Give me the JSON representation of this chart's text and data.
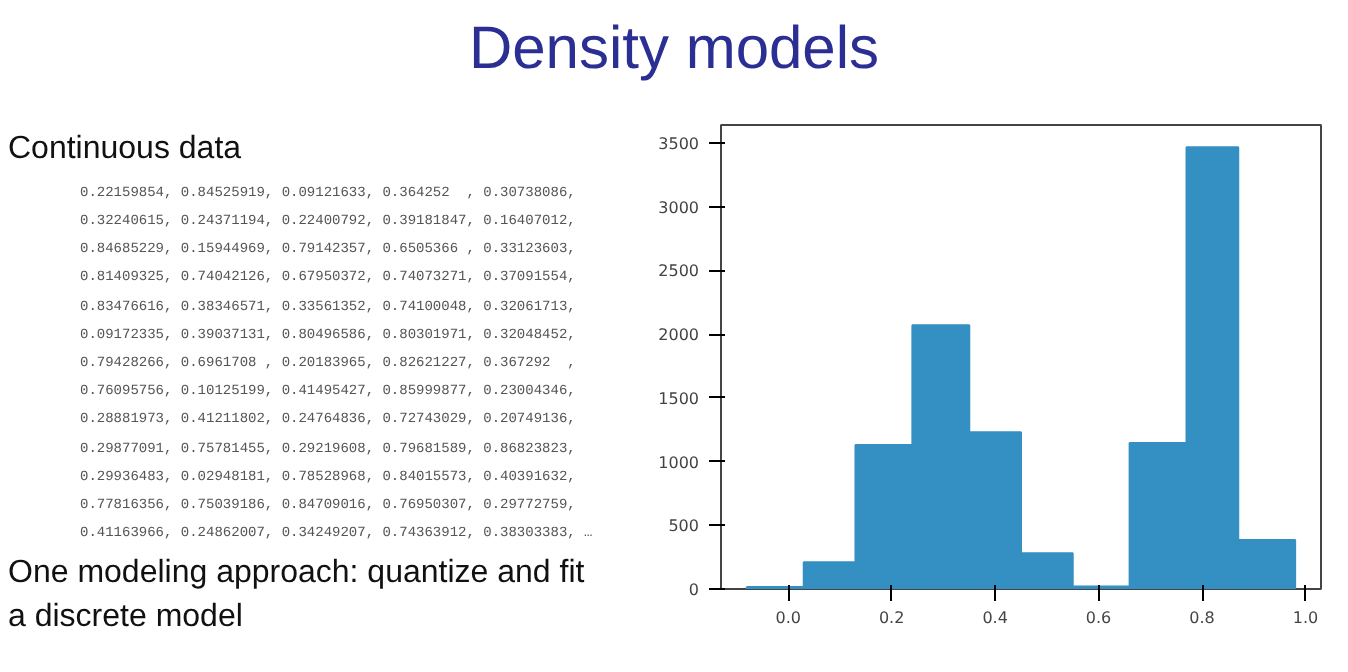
{
  "chart_data": {
    "type": "histogram",
    "title": "Density models",
    "annotations": [
      "Continuous data",
      "0.22159854, 0.84525919, 0.09121633, 0.364252  , 0.30738086,",
      "0.32240615, 0.24371194, 0.22400792, 0.39181847, 0.16407012,",
      "0.84685229, 0.15944969, 0.79142357, 0.6505366 , 0.33123603,",
      "0.81409325, 0.74042126, 0.67950372, 0.74073271, 0.37091554,",
      "0.83476616, 0.38346571, 0.33561352, 0.74100048, 0.32061713,",
      "0.09172335, 0.39037131, 0.80496586, 0.80301971, 0.32048452,",
      "0.79428266, 0.6961708 , 0.20183965, 0.82621227, 0.367292  ,",
      "0.76095756, 0.10125199, 0.41495427, 0.85999877, 0.23004346,",
      "0.28881973, 0.41211802, 0.24764836, 0.72743029, 0.20749136,",
      "0.29877091, 0.75781455, 0.29219608, 0.79681589, 0.86823823,",
      "0.29936483, 0.02948181, 0.78528968, 0.84015573, 0.40391632,",
      "0.77816356, 0.75039186, 0.84709016, 0.76950307, 0.29772759,",
      "0.41163966, 0.24862007, 0.34249207, 0.74363912, 0.38303383, …",
      "One modeling approach: quantize and fit a discrete model"
    ],
    "bins": [
      -0.08,
      0.03,
      0.13,
      0.24,
      0.35,
      0.45,
      0.55,
      0.66,
      0.77,
      0.87,
      0.98
    ],
    "values": [
      15,
      210,
      1130,
      2070,
      1230,
      280,
      20,
      1145,
      3465,
      385
    ],
    "color": "#3490c2",
    "xlim": [
      -0.13,
      1.03
    ],
    "ylim": [
      0,
      3640
    ],
    "xticks": [
      {
        "value": 0,
        "label": "0.0"
      },
      {
        "value": 0.2,
        "label": "0.2"
      },
      {
        "value": 0.4,
        "label": "0.4"
      },
      {
        "value": 0.6,
        "label": "0.6"
      },
      {
        "value": 0.8,
        "label": "0.8"
      },
      {
        "value": 1,
        "label": "1.0"
      }
    ],
    "yticks": [
      0,
      500,
      1000,
      1500,
      2000,
      2500,
      3000,
      3500
    ]
  }
}
